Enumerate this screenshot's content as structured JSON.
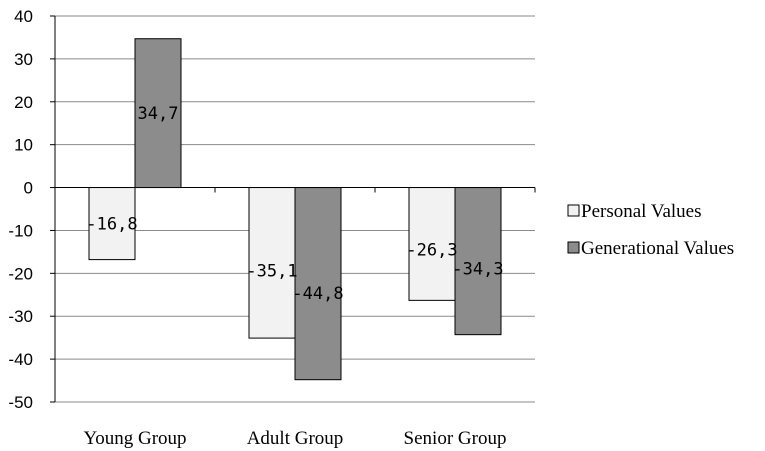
{
  "chart_data": {
    "type": "bar",
    "categories": [
      "Young Group",
      "Adult Group",
      "Senior Group"
    ],
    "series": [
      {
        "name": "Personal Values",
        "values": [
          -16.8,
          -35.1,
          -26.3
        ],
        "labels": [
          "-16,8",
          "-35,1",
          "-26,3"
        ],
        "color": "#f2f2f2"
      },
      {
        "name": "Generational Values",
        "values": [
          34.7,
          -44.8,
          -34.3
        ],
        "labels": [
          "34,7",
          "-44,8",
          "-34,3"
        ],
        "color": "#8c8c8c"
      }
    ],
    "ylim": [
      -50,
      40
    ],
    "yticks": [
      40,
      30,
      20,
      10,
      0,
      -10,
      -20,
      -30,
      -40,
      -50
    ],
    "grid": true,
    "legend_position": "right",
    "title": "",
    "xlabel": "",
    "ylabel": ""
  }
}
